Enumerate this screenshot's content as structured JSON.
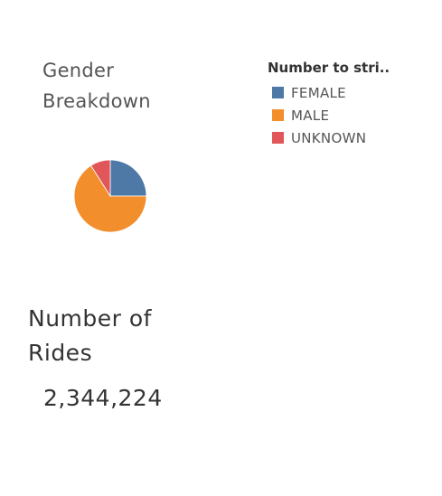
{
  "chart_data": {
    "type": "pie",
    "title": "Gender Breakdown",
    "legend_title": "Number to stri..",
    "legend_placement": "top-right",
    "slices": [
      {
        "label": "FEMALE",
        "value": 25.0,
        "color": "#4e79a7"
      },
      {
        "label": "MALE",
        "value": 66.0,
        "color": "#f28e2b"
      },
      {
        "label": "UNKNOWN",
        "value": 9.0,
        "color": "#e15759"
      }
    ]
  },
  "kpi": {
    "title": "Number of Rides",
    "value": "2,344,224"
  }
}
